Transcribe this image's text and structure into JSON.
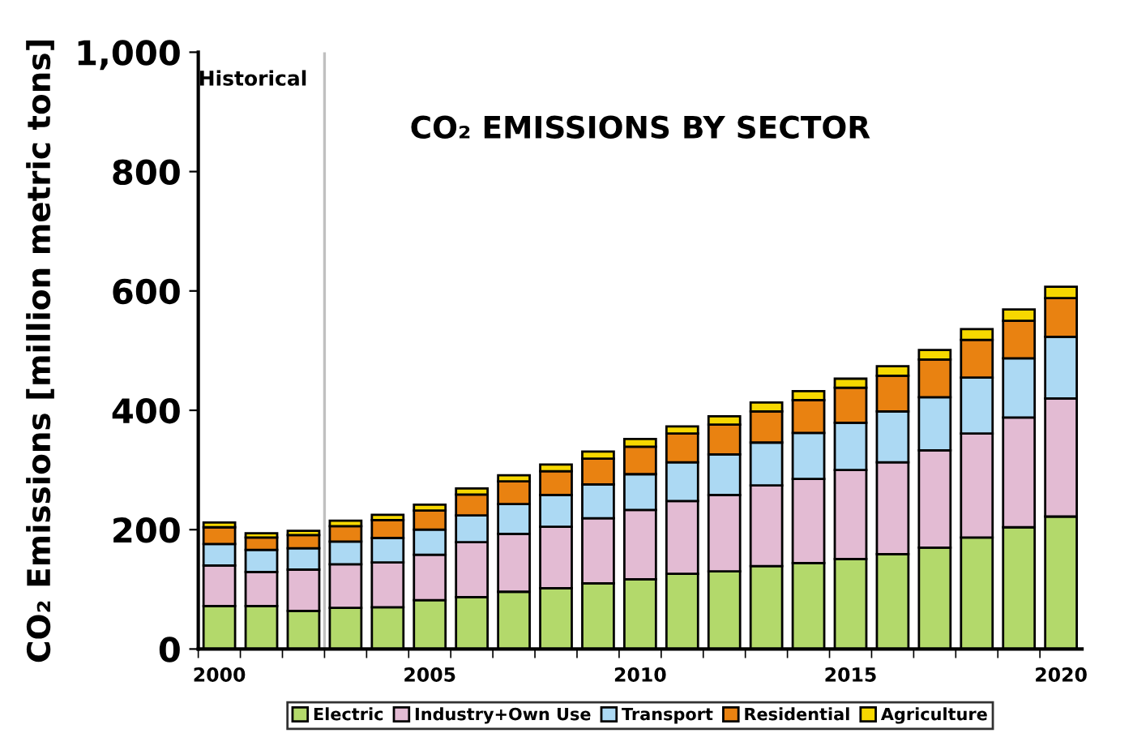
{
  "chart_data": {
    "type": "bar",
    "stacked": true,
    "title": "CO₂ EMISSIONS BY SECTOR",
    "ylabel": "CO₂ Emissions [million metric tons]",
    "x": [
      2000,
      2001,
      2002,
      2003,
      2004,
      2005,
      2006,
      2007,
      2008,
      2009,
      2010,
      2011,
      2012,
      2013,
      2014,
      2015,
      2016,
      2017,
      2018,
      2019,
      2020
    ],
    "series": [
      {
        "name": "Electric",
        "color": "#b3d96b",
        "values": [
          72,
          72,
          64,
          69,
          70,
          82,
          87,
          96,
          102,
          110,
          117,
          126,
          130,
          139,
          144,
          151,
          159,
          170,
          187,
          204,
          222
        ]
      },
      {
        "name": "Industry+Own Use",
        "color": "#e3bbd3",
        "values": [
          68,
          57,
          69,
          73,
          75,
          76,
          92,
          97,
          103,
          109,
          116,
          122,
          128,
          135,
          141,
          149,
          154,
          163,
          174,
          184,
          198
        ]
      },
      {
        "name": "Transport",
        "color": "#acd9f3",
        "values": [
          36,
          37,
          36,
          38,
          41,
          42,
          45,
          50,
          53,
          57,
          60,
          65,
          68,
          72,
          77,
          79,
          85,
          89,
          94,
          99,
          103
        ]
      },
      {
        "name": "Residential",
        "color": "#e98211",
        "values": [
          28,
          21,
          22,
          26,
          30,
          32,
          35,
          38,
          40,
          43,
          46,
          48,
          50,
          52,
          55,
          59,
          60,
          63,
          63,
          63,
          65
        ]
      },
      {
        "name": "Agriculture",
        "color": "#f7d800",
        "values": [
          8,
          7,
          7,
          9,
          9,
          10,
          10,
          10,
          11,
          12,
          13,
          12,
          14,
          15,
          15,
          15,
          16,
          16,
          18,
          19,
          19
        ]
      }
    ],
    "xlim": [
      1999.5,
      2020.5
    ],
    "xticks": [
      {
        "value": 1999.5,
        "label": null
      },
      2000,
      {
        "value": 2000.5,
        "label": null
      },
      {
        "value": 2001.5,
        "label": null
      },
      {
        "value": 2002.5,
        "label": null
      },
      {
        "value": 2003.5,
        "label": null
      },
      {
        "value": 2004.5,
        "label": null
      },
      2005,
      {
        "value": 2005.5,
        "label": null
      },
      {
        "value": 2006.5,
        "label": null
      },
      {
        "value": 2007.5,
        "label": null
      },
      {
        "value": 2008.5,
        "label": null
      },
      {
        "value": 2009.5,
        "label": null
      },
      2010,
      {
        "value": 2010.5,
        "label": null
      },
      {
        "value": 2011.5,
        "label": null
      },
      {
        "value": 2012.5,
        "label": null
      },
      {
        "value": 2013.5,
        "label": null
      },
      {
        "value": 2014.5,
        "label": null
      },
      2015,
      {
        "value": 2015.5,
        "label": null
      },
      {
        "value": 2016.5,
        "label": null
      },
      {
        "value": 2017.5,
        "label": null
      },
      {
        "value": 2018.5,
        "label": null
      },
      {
        "value": 2019.5,
        "label": null
      },
      2020
    ],
    "ylim": [
      0,
      1000
    ],
    "yticks": [
      0,
      200,
      400,
      600,
      800,
      {
        "value": 1000,
        "label": "1,000"
      }
    ],
    "ref_lines": [
      {
        "axis": "x",
        "value": 2002.5,
        "label": "Historical",
        "color": "#c0c0c0"
      }
    ],
    "legend": "bottom",
    "grid": false
  }
}
